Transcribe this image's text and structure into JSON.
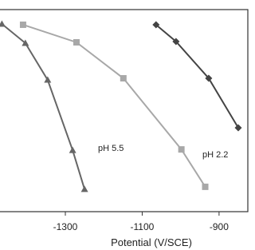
{
  "chart_data": {
    "type": "line",
    "x_label": "Potential (V/SCE)",
    "annotations": [
      "pH 5.5",
      "pH 2.2"
    ],
    "xlim": [
      -1470,
      -821
    ],
    "xticks": [
      -1300,
      -1100,
      -900
    ],
    "ylim": [
      0,
      100
    ],
    "series": [
      {
        "marker": "triangle",
        "color": "#666666",
        "x": [
          -1465,
          -1404,
          -1346,
          -1281,
          -1250
        ],
        "values": [
          92.9,
          83.4,
          65.2,
          30.4,
          11.1
        ]
      },
      {
        "marker": "square",
        "color": "#a8a8a8",
        "x": [
          -1410,
          -1271,
          -1149,
          -998,
          -936
        ],
        "values": [
          92.5,
          83.8,
          66,
          30.8,
          12.3
        ]
      },
      {
        "marker": "diamond",
        "color": "#444444",
        "x": [
          -1064,
          -1012,
          -927,
          -850
        ],
        "values": [
          92.5,
          84.2,
          66,
          41.5
        ]
      }
    ]
  }
}
